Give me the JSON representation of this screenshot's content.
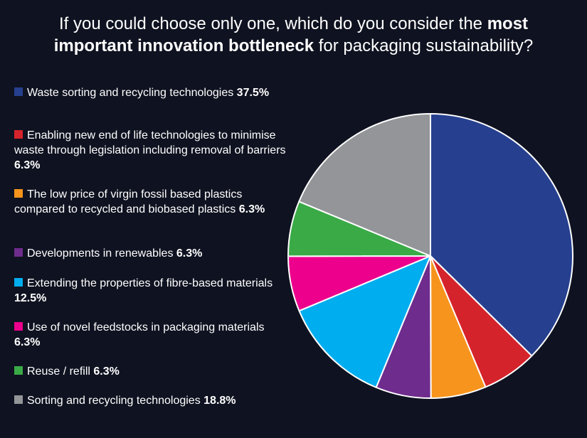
{
  "title": {
    "part1": "If you could choose only one, which do you consider the ",
    "bold1": "most",
    "bold2": "important innovation bottleneck",
    "part2": " for packaging sustainability?"
  },
  "chart_data": {
    "type": "pie",
    "title": "If you could choose only one, which do you consider the most important innovation bottleneck for packaging sustainability?",
    "legend_position": "left",
    "slices": [
      {
        "label": "Waste sorting and recycling technologies",
        "value": 37.5,
        "value_label": "37.5%",
        "color": "#26408f"
      },
      {
        "label": "Enabling new end of life technologies to minimise waste through legislation including removal of barriers",
        "value": 6.3,
        "value_label": "6.3%",
        "color": "#d5232b"
      },
      {
        "label": "The low price of virgin fossil based plastics compared to recycled and biobased plastics",
        "value": 6.3,
        "value_label": "6.3%",
        "color": "#f7941d"
      },
      {
        "label": "Developments in renewables",
        "value": 6.3,
        "value_label": "6.3%",
        "color": "#6e2c8d"
      },
      {
        "label": "Extending the properties of fibre-based materials",
        "value": 12.5,
        "value_label": "12.5%",
        "color": "#00adef"
      },
      {
        "label": "Use of novel feedstocks in packaging materials",
        "value": 6.3,
        "value_label": "6.3%",
        "color": "#ec008c"
      },
      {
        "label": "Reuse / refill",
        "value": 6.3,
        "value_label": "6.3%",
        "color": "#3aaa47"
      },
      {
        "label": "Sorting and recycling technologies",
        "value": 18.8,
        "value_label": "18.8%",
        "color": "#939598"
      }
    ]
  }
}
